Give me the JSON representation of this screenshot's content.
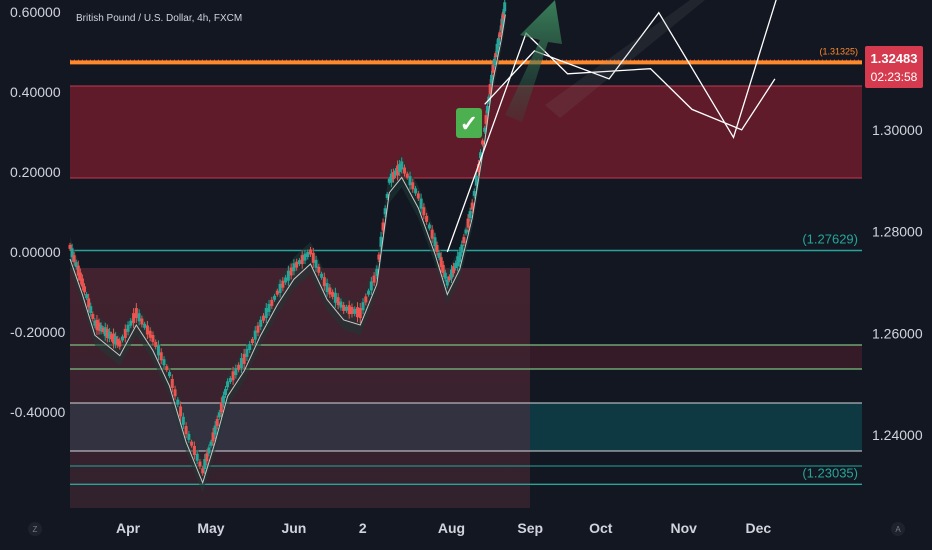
{
  "chart_data": {
    "type": "line",
    "title": "British Pound / U.S. Dollar, 4h, FXCM",
    "left_axis": {
      "ticks": [
        "0.60000",
        "0.40000",
        "0.20000",
        "0.00000",
        "-0.20000",
        "-0.40000"
      ],
      "tick_values": [
        0.6,
        0.4,
        0.2,
        0.0,
        -0.2,
        -0.4
      ],
      "range": [
        -0.64,
        0.63
      ]
    },
    "right_axis": {
      "ticks": [
        "1.30000",
        "1.28000",
        "1.26000",
        "1.24000"
      ],
      "tick_values": [
        1.3,
        1.28,
        1.26,
        1.24
      ],
      "range": [
        1.2257,
        1.3255
      ]
    },
    "x_axis": {
      "ticks": [
        "Apr",
        "May",
        "Jun",
        "2",
        "Aug",
        "Sep",
        "Oct",
        "Nov",
        "Dec"
      ],
      "tick_positions": [
        0.7,
        1.7,
        2.7,
        3.53,
        4.6,
        5.55,
        6.4,
        7.4,
        8.3
      ],
      "range": [
        0,
        9.55
      ],
      "history_end": 5.25
    },
    "current_price": {
      "value": "1.32483",
      "countdown": "02:23:58",
      "level": 1.32483
    },
    "levels": [
      {
        "name": "orange-level",
        "value": 1.31325,
        "label": "(1.31325)",
        "color": "#ff8a2b"
      },
      {
        "name": "teal-level-upper",
        "value": 1.27629,
        "label": "(1.27629)",
        "color": "#26a69a"
      },
      {
        "name": "teal-level-lower",
        "value": 1.23035,
        "label": "(1.23035)",
        "color": "#26a69a"
      }
    ],
    "price_series": {
      "x": [
        0.0,
        0.15,
        0.3,
        0.45,
        0.6,
        0.8,
        1.0,
        1.2,
        1.4,
        1.6,
        1.75,
        1.9,
        2.1,
        2.3,
        2.5,
        2.7,
        2.9,
        3.1,
        3.3,
        3.5,
        3.7,
        3.85,
        4.0,
        4.2,
        4.4,
        4.55,
        4.7,
        4.85,
        5.0,
        5.1,
        5.2,
        5.25
      ],
      "close": [
        1.277,
        1.27,
        1.262,
        1.26,
        1.258,
        1.264,
        1.259,
        1.252,
        1.241,
        1.233,
        1.241,
        1.25,
        1.255,
        1.262,
        1.268,
        1.273,
        1.276,
        1.269,
        1.265,
        1.264,
        1.272,
        1.29,
        1.293,
        1.287,
        1.278,
        1.27,
        1.275,
        1.285,
        1.3,
        1.312,
        1.32,
        1.325
      ]
    },
    "forecast_paths": [
      {
        "name": "projection-path-a",
        "x": [
          5.0,
          5.6,
          6.5,
          7.1,
          8.0,
          8.6
        ],
        "y": [
          1.305,
          1.3155,
          1.31,
          1.323,
          1.2985,
          1.33
        ]
      },
      {
        "name": "projection-path-b",
        "x": [
          4.55,
          5.5,
          6.0,
          7.0,
          7.5,
          8.1,
          8.5
        ],
        "y": [
          1.276,
          1.319,
          1.311,
          1.312,
          1.304,
          1.3,
          1.31
        ]
      }
    ],
    "annotations": {
      "checkmark": "✓"
    },
    "grid": false
  }
}
